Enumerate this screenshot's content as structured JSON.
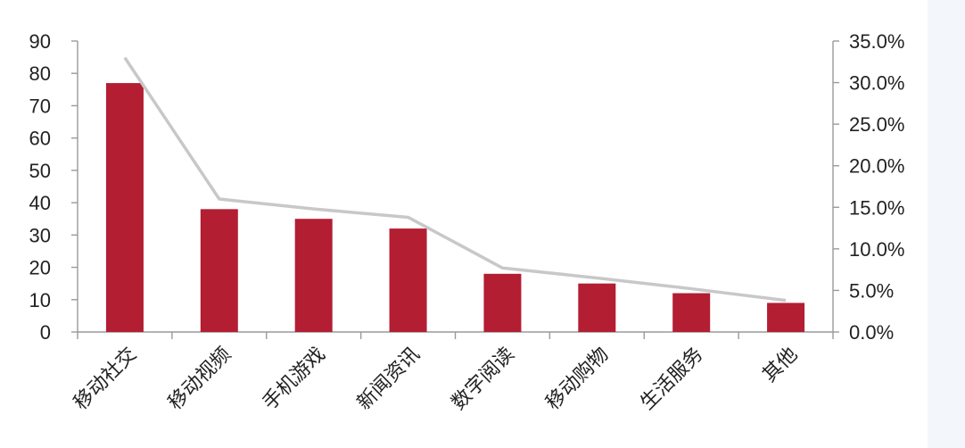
{
  "chart_data": {
    "type": "bar",
    "categories": [
      "移动社交",
      "移动视频",
      "手机游戏",
      "新闻资讯",
      "数字阅读",
      "移动购物",
      "生活服务",
      "其他"
    ],
    "series": [
      {
        "type": "bar",
        "axis": "left",
        "color": "#b31e32",
        "values": [
          77,
          38,
          35,
          32,
          18,
          15,
          12,
          9
        ]
      },
      {
        "type": "line",
        "axis": "right",
        "color": "#c8c8c8",
        "values": [
          0.33,
          0.16,
          0.148,
          0.138,
          0.077,
          0.065,
          0.052,
          0.038
        ]
      }
    ],
    "y_left": {
      "min": 0,
      "max": 90,
      "ticks": [
        "0",
        "10",
        "20",
        "30",
        "40",
        "50",
        "60",
        "70",
        "80",
        "90"
      ]
    },
    "y_right": {
      "min": 0,
      "max": 0.35,
      "ticks": [
        "0.0%",
        "5.0%",
        "10.0%",
        "15.0%",
        "20.0%",
        "25.0%",
        "30.0%",
        "35.0%"
      ]
    },
    "grid": false,
    "legend": "none",
    "title": "",
    "xlabel": "",
    "ylabel": ""
  }
}
